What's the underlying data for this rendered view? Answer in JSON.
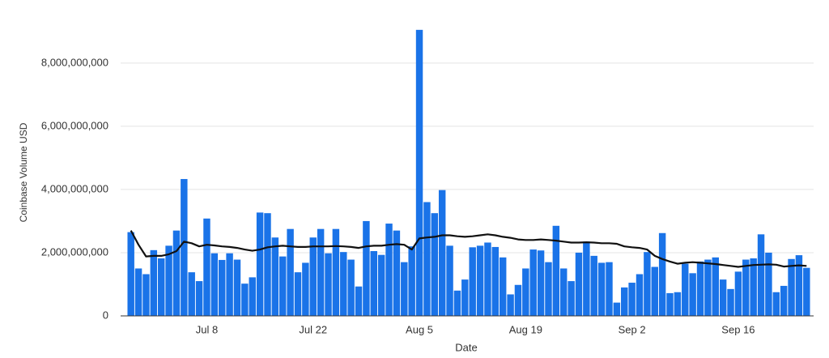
{
  "chart_data": {
    "type": "bar",
    "x_label": "Date",
    "y_label": "Coinbase Volume USD",
    "categories": [
      null,
      null,
      null,
      null,
      null,
      null,
      null,
      null,
      null,
      null,
      "Jul 8",
      null,
      null,
      null,
      null,
      null,
      null,
      null,
      null,
      null,
      null,
      null,
      null,
      null,
      "Jul 22",
      null,
      null,
      null,
      null,
      null,
      null,
      null,
      null,
      null,
      null,
      null,
      null,
      null,
      "Aug 5",
      null,
      null,
      null,
      null,
      null,
      null,
      null,
      null,
      null,
      null,
      null,
      null,
      null,
      "Aug 19",
      null,
      null,
      null,
      null,
      null,
      null,
      null,
      null,
      null,
      null,
      null,
      null,
      null,
      "Sep 2",
      null,
      null,
      null,
      null,
      null,
      null,
      null,
      null,
      null,
      null,
      null,
      null,
      null,
      "Sep 16",
      null,
      null,
      null,
      null,
      null,
      null,
      null,
      null,
      null
    ],
    "series": [
      {
        "type": "bar",
        "color": "#1a73e8",
        "values": [
          2650000000,
          1500000000,
          1320000000,
          2080000000,
          1820000000,
          2220000000,
          2700000000,
          4330000000,
          1380000000,
          1100000000,
          3080000000,
          1980000000,
          1770000000,
          1980000000,
          1780000000,
          1020000000,
          1220000000,
          3270000000,
          3250000000,
          2480000000,
          1880000000,
          2750000000,
          1380000000,
          1680000000,
          2480000000,
          2750000000,
          1980000000,
          2750000000,
          2020000000,
          1780000000,
          930000000,
          3000000000,
          2050000000,
          1930000000,
          2920000000,
          2700000000,
          1700000000,
          2200000000,
          9050000000,
          3600000000,
          3250000000,
          3980000000,
          2220000000,
          800000000,
          1150000000,
          2170000000,
          2220000000,
          2320000000,
          2180000000,
          1850000000,
          680000000,
          980000000,
          1500000000,
          2100000000,
          2070000000,
          1700000000,
          2850000000,
          1500000000,
          1100000000,
          2000000000,
          2350000000,
          1900000000,
          1680000000,
          1700000000,
          420000000,
          900000000,
          1050000000,
          1320000000,
          2020000000,
          1550000000,
          2620000000,
          720000000,
          750000000,
          1650000000,
          1350000000,
          1720000000,
          1780000000,
          1850000000,
          1150000000,
          850000000,
          1400000000,
          1780000000,
          1820000000,
          2580000000,
          2000000000,
          750000000,
          950000000,
          1800000000,
          1920000000,
          1520000000
        ]
      },
      {
        "type": "line",
        "color": "#111111",
        "values": [
          2700000000,
          2250000000,
          1880000000,
          1900000000,
          1900000000,
          1950000000,
          2050000000,
          2350000000,
          2300000000,
          2200000000,
          2250000000,
          2230000000,
          2200000000,
          2180000000,
          2150000000,
          2100000000,
          2060000000,
          2100000000,
          2170000000,
          2200000000,
          2220000000,
          2200000000,
          2180000000,
          2180000000,
          2200000000,
          2200000000,
          2200000000,
          2210000000,
          2200000000,
          2180000000,
          2150000000,
          2200000000,
          2220000000,
          2220000000,
          2250000000,
          2270000000,
          2250000000,
          2100000000,
          2450000000,
          2480000000,
          2500000000,
          2550000000,
          2550000000,
          2520000000,
          2500000000,
          2520000000,
          2550000000,
          2580000000,
          2550000000,
          2500000000,
          2470000000,
          2420000000,
          2400000000,
          2400000000,
          2420000000,
          2400000000,
          2380000000,
          2350000000,
          2320000000,
          2320000000,
          2330000000,
          2320000000,
          2300000000,
          2300000000,
          2280000000,
          2200000000,
          2170000000,
          2150000000,
          2100000000,
          1900000000,
          1800000000,
          1720000000,
          1650000000,
          1680000000,
          1700000000,
          1680000000,
          1660000000,
          1640000000,
          1610000000,
          1580000000,
          1550000000,
          1580000000,
          1610000000,
          1620000000,
          1630000000,
          1620000000,
          1560000000,
          1580000000,
          1600000000,
          1580000000
        ]
      }
    ],
    "ylim": [
      0,
      9200000000
    ],
    "yticks": [
      0,
      {
        "value": 2000000000,
        "label": "2,000,000,000"
      },
      {
        "value": 4000000000,
        "label": "4,000,000,000"
      },
      {
        "value": 6000000000,
        "label": "6,000,000,000"
      },
      {
        "value": 8000000000,
        "label": "8,000,000,000"
      }
    ],
    "grid": true
  }
}
